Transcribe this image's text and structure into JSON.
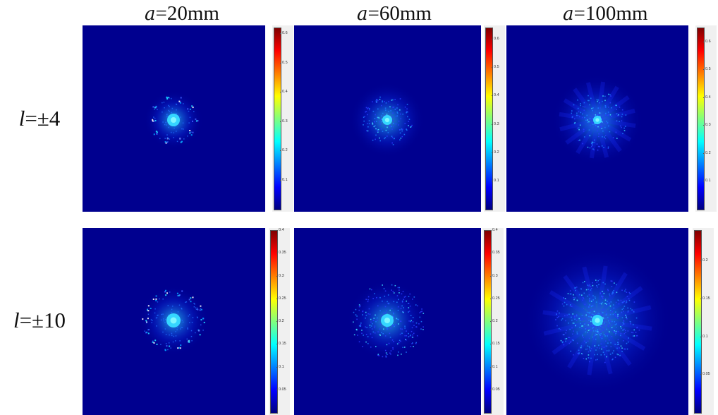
{
  "columns": [
    {
      "symbol": "a",
      "text": "=20mm"
    },
    {
      "symbol": "a",
      "text": "=60mm"
    },
    {
      "symbol": "a",
      "text": "=100mm"
    }
  ],
  "rows": [
    {
      "symbol": "l",
      "text": "=±4"
    },
    {
      "symbol": "l",
      "text": "=±10"
    }
  ],
  "colors": {
    "background": "#00008f",
    "colormap": [
      "#00007f",
      "#0000ff",
      "#007fff",
      "#00ffff",
      "#7fff7f",
      "#ffff00",
      "#ff7f00",
      "#ff0000",
      "#7f0000"
    ]
  },
  "panels": [
    {
      "row": 0,
      "col": 0,
      "cbar_ticks": [
        "0.6",
        "0.5",
        "0.4",
        "0.3",
        "0.2",
        "0.1"
      ],
      "cbar_max": 0.62
    },
    {
      "row": 0,
      "col": 1,
      "cbar_ticks": [
        "0.6",
        "0.5",
        "0.4",
        "0.3",
        "0.2",
        "0.1"
      ],
      "cbar_max": 0.64
    },
    {
      "row": 0,
      "col": 2,
      "cbar_ticks": [
        "0.6",
        "0.5",
        "0.4",
        "0.3",
        "0.2",
        "0.1"
      ],
      "cbar_max": 0.65
    },
    {
      "row": 1,
      "col": 0,
      "cbar_ticks": [
        "0.4",
        "0.35",
        "0.3",
        "0.25",
        "0.2",
        "0.15",
        "0.1",
        "0.05"
      ],
      "cbar_max": 0.4
    },
    {
      "row": 1,
      "col": 1,
      "cbar_ticks": [
        "0.4",
        "0.35",
        "0.3",
        "0.25",
        "0.2",
        "0.15",
        "0.1",
        "0.05"
      ],
      "cbar_max": 0.4
    },
    {
      "row": 1,
      "col": 2,
      "cbar_ticks": [
        "0.2",
        "0.15",
        "0.1",
        "0.05"
      ],
      "cbar_max": 0.24
    }
  ]
}
